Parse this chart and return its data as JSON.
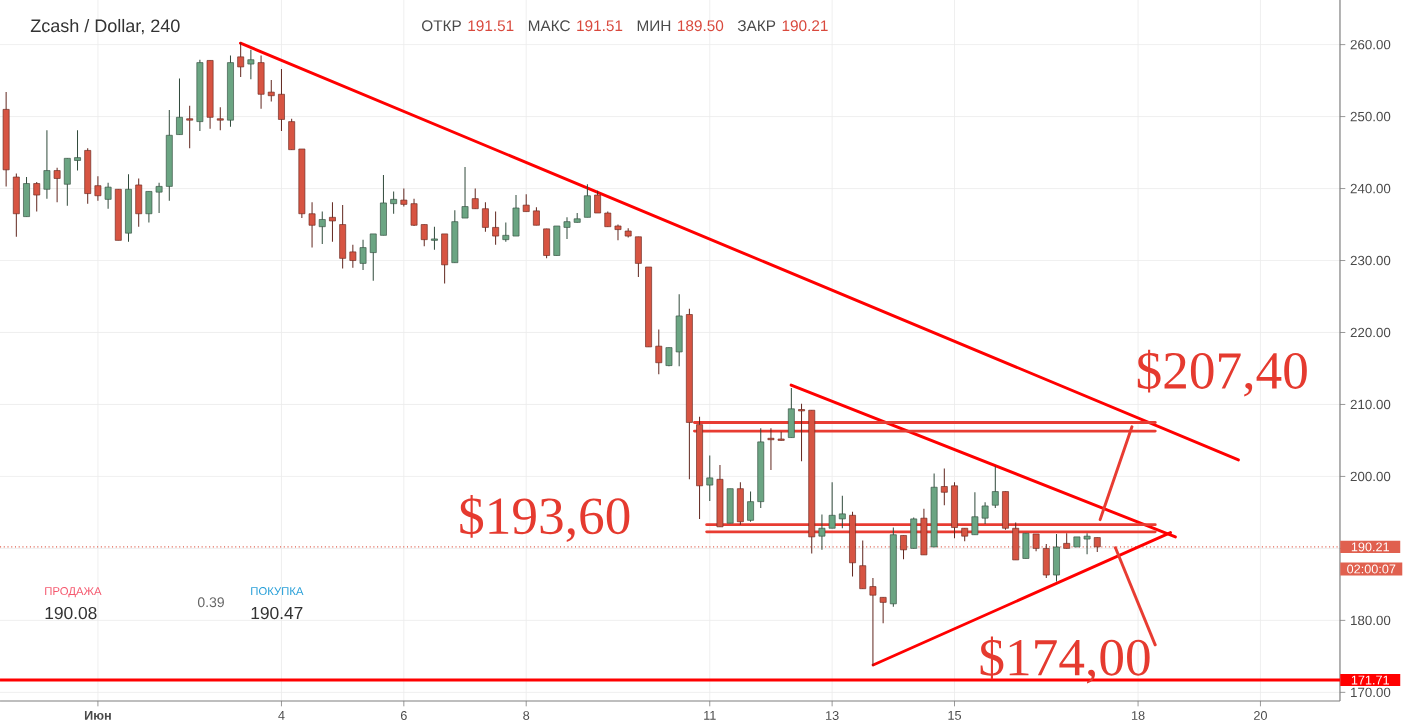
{
  "chart_data": {
    "type": "candlestick",
    "title": "Zcash / Dollar, 240",
    "x": [
      -0.5,
      -0.3333,
      -0.1667,
      0,
      0.1667,
      0.3333,
      0.5,
      0.6667,
      0.8333,
      1,
      1.1667,
      1.3333,
      1.5,
      1.6667,
      1.8333,
      2,
      2.1667,
      2.3333,
      2.5,
      2.6667,
      2.8333,
      3,
      3.1667,
      3.3333,
      3.5,
      3.6667,
      3.8333,
      4,
      4.1667,
      4.3333,
      4.5,
      4.6667,
      4.8333,
      5,
      5.1667,
      5.3333,
      5.5,
      5.6667,
      5.8333,
      6,
      6.1667,
      6.3333,
      6.5,
      6.6667,
      6.8333,
      7,
      7.1667,
      7.3333,
      7.5,
      7.6667,
      7.8333,
      8,
      8.1667,
      8.3333,
      8.5,
      8.6667,
      8.8333,
      9,
      9.1667,
      9.3333,
      9.5,
      9.6667,
      9.8333,
      10,
      10.1667,
      10.3333,
      10.5,
      10.6667,
      10.8333,
      11,
      11.1667,
      11.3333,
      11.5,
      11.6667,
      11.8333,
      12,
      12.1667,
      12.3333,
      12.5,
      12.6667,
      12.8333,
      13,
      13.1667,
      13.3333,
      13.5,
      13.6667,
      13.8333,
      14,
      14.1667,
      14.3333,
      14.5,
      14.6667,
      14.8333,
      15,
      15.1667,
      15.3333,
      15.5,
      15.6667,
      15.8333,
      16,
      16.1667,
      16.3333,
      16.5,
      16.6667,
      16.8333,
      17,
      17.1667,
      17.3333
    ],
    "ohlc": [
      [
        251.0,
        253.4,
        240.3,
        242.6
      ],
      [
        241.6,
        242.1,
        233.3,
        236.5
      ],
      [
        236.1,
        241.6,
        236.1,
        240.7
      ],
      [
        240.7,
        240.9,
        236.8,
        239.1
      ],
      [
        239.9,
        248.1,
        238.6,
        242.5
      ],
      [
        242.5,
        242.9,
        238.1,
        241.4
      ],
      [
        240.6,
        244.2,
        237.6,
        244.2
      ],
      [
        243.9,
        248.1,
        242.5,
        244.3
      ],
      [
        245.3,
        245.6,
        237.9,
        239.3
      ],
      [
        240.4,
        241.7,
        238.3,
        239.0
      ],
      [
        238.5,
        240.8,
        237.2,
        240.2
      ],
      [
        239.9,
        239.9,
        232.8,
        232.8
      ],
      [
        233.8,
        242.0,
        232.6,
        239.9
      ],
      [
        240.5,
        241.4,
        234.7,
        236.5
      ],
      [
        236.5,
        239.6,
        235.3,
        239.6
      ],
      [
        239.5,
        240.8,
        236.6,
        240.3
      ],
      [
        240.3,
        250.9,
        238.3,
        247.4
      ],
      [
        247.5,
        255.3,
        247.5,
        249.9
      ],
      [
        249.7,
        251.5,
        245.6,
        249.5
      ],
      [
        249.3,
        257.9,
        248.0,
        257.5
      ],
      [
        257.8,
        257.8,
        248.3,
        249.9
      ],
      [
        249.7,
        251.3,
        248.1,
        249.5
      ],
      [
        249.5,
        258.5,
        248.6,
        257.5
      ],
      [
        258.3,
        260.3,
        255.5,
        256.9
      ],
      [
        257.3,
        259.3,
        255.2,
        257.9
      ],
      [
        257.5,
        258.5,
        251.1,
        253.1
      ],
      [
        253.4,
        255.1,
        252.1,
        252.9
      ],
      [
        253.1,
        256.6,
        248.0,
        249.6
      ],
      [
        249.3,
        249.7,
        245.4,
        245.4
      ],
      [
        245.5,
        245.5,
        235.9,
        236.5
      ],
      [
        236.5,
        238.1,
        231.8,
        234.9
      ],
      [
        234.7,
        236.8,
        232.3,
        235.7
      ],
      [
        236.0,
        238.1,
        232.6,
        235.5
      ],
      [
        235.0,
        237.7,
        228.9,
        230.3
      ],
      [
        231.2,
        232.2,
        229.0,
        230.0
      ],
      [
        229.6,
        232.9,
        228.7,
        231.8
      ],
      [
        231.1,
        233.7,
        227.2,
        233.7
      ],
      [
        233.5,
        241.9,
        233.5,
        238.0
      ],
      [
        237.9,
        239.6,
        236.5,
        238.5
      ],
      [
        238.4,
        240.0,
        237.5,
        237.8
      ],
      [
        237.9,
        238.6,
        234.8,
        234.9
      ],
      [
        235.0,
        235.0,
        232.0,
        232.9
      ],
      [
        232.8,
        234.7,
        231.5,
        233.0
      ],
      [
        233.7,
        233.7,
        226.8,
        229.4
      ],
      [
        229.7,
        237.0,
        229.7,
        235.4
      ],
      [
        235.9,
        243.0,
        235.9,
        237.5
      ],
      [
        238.6,
        240.0,
        237.2,
        237.2
      ],
      [
        237.2,
        238.1,
        234.0,
        234.6
      ],
      [
        234.6,
        236.8,
        232.2,
        233.4
      ],
      [
        232.9,
        235.3,
        232.6,
        233.5
      ],
      [
        233.4,
        239.1,
        233.4,
        237.3
      ],
      [
        237.7,
        239.2,
        236.8,
        236.8
      ],
      [
        236.9,
        237.4,
        234.9,
        234.9
      ],
      [
        234.4,
        234.4,
        230.3,
        230.7
      ],
      [
        230.7,
        234.8,
        230.7,
        234.8
      ],
      [
        234.6,
        236.0,
        233.0,
        235.4
      ],
      [
        235.3,
        236.6,
        235.3,
        235.8
      ],
      [
        236.0,
        240.6,
        236.0,
        239.0
      ],
      [
        239.1,
        239.7,
        236.6,
        236.6
      ],
      [
        236.6,
        236.8,
        234.7,
        234.7
      ],
      [
        234.8,
        235.0,
        232.8,
        234.3
      ],
      [
        234.1,
        234.5,
        233.2,
        233.4
      ],
      [
        233.3,
        233.3,
        227.7,
        229.6
      ],
      [
        229.1,
        229.1,
        218.0,
        218.0
      ],
      [
        218.1,
        220.4,
        214.2,
        215.8
      ],
      [
        215.4,
        217.9,
        215.3,
        217.9
      ],
      [
        217.3,
        225.3,
        215.3,
        222.3
      ],
      [
        222.5,
        223.3,
        199.6,
        207.5
      ],
      [
        207.2,
        208.3,
        194.1,
        198.7
      ],
      [
        198.8,
        202.9,
        196.6,
        199.8
      ],
      [
        199.6,
        201.6,
        193.0,
        193.0
      ],
      [
        193.5,
        198.3,
        193.5,
        198.3
      ],
      [
        198.3,
        199.2,
        193.3,
        193.7
      ],
      [
        193.9,
        197.9,
        193.7,
        196.5
      ],
      [
        196.5,
        206.7,
        195.6,
        204.8
      ],
      [
        205.3,
        206.7,
        200.9,
        205.1
      ],
      [
        205.2,
        206.2,
        205.0,
        205.0
      ],
      [
        205.4,
        212.3,
        205.4,
        209.4
      ],
      [
        209.3,
        210.1,
        202.1,
        209.1
      ],
      [
        209.2,
        209.2,
        189.3,
        191.6
      ],
      [
        191.7,
        194.7,
        189.8,
        192.8
      ],
      [
        192.8,
        199.2,
        192.8,
        194.6
      ],
      [
        194.1,
        197.3,
        192.8,
        194.8
      ],
      [
        194.6,
        195.1,
        186.1,
        188.0
      ],
      [
        187.6,
        191.1,
        184.4,
        184.4
      ],
      [
        184.7,
        185.9,
        173.7,
        183.5
      ],
      [
        183.2,
        183.2,
        179.6,
        182.5
      ],
      [
        182.3,
        192.9,
        181.9,
        191.9
      ],
      [
        191.8,
        191.8,
        188.5,
        189.8
      ],
      [
        190.0,
        194.3,
        190.0,
        194.1
      ],
      [
        194.2,
        195.5,
        189.1,
        189.1
      ],
      [
        190.2,
        200.4,
        190.2,
        198.5
      ],
      [
        198.6,
        201.1,
        196.0,
        197.8
      ],
      [
        198.7,
        199.2,
        191.4,
        192.9
      ],
      [
        192.8,
        192.8,
        191.0,
        191.7
      ],
      [
        191.9,
        197.8,
        191.9,
        194.4
      ],
      [
        194.2,
        196.4,
        193.4,
        195.9
      ],
      [
        196.0,
        201.4,
        195.6,
        197.9
      ],
      [
        197.9,
        197.9,
        192.6,
        192.8
      ],
      [
        192.8,
        193.6,
        188.4,
        188.4
      ],
      [
        188.6,
        192.1,
        188.6,
        192.1
      ],
      [
        192.0,
        192.0,
        189.6,
        190.0
      ],
      [
        190.0,
        190.6,
        185.9,
        186.3
      ],
      [
        186.3,
        192.0,
        185.4,
        190.2
      ],
      [
        190.7,
        192.1,
        190.0,
        190.0
      ],
      [
        190.2,
        191.6,
        190.2,
        191.6
      ],
      [
        191.3,
        192.1,
        189.2,
        191.7
      ],
      [
        191.51,
        191.51,
        189.5,
        190.21
      ]
    ],
    "colors": [
      "#d75442",
      "#d75442",
      "#6ba583",
      "#d75442",
      "#6ba583",
      "#d75442",
      "#6ba583",
      "#6ba583",
      "#d75442",
      "#d75442",
      "#6ba583",
      "#d75442",
      "#6ba583",
      "#d75442",
      "#6ba583",
      "#6ba583",
      "#6ba583",
      "#6ba583",
      "#d75442",
      "#6ba583",
      "#d75442",
      "#d75442",
      "#6ba583",
      "#d75442",
      "#6ba583",
      "#d75442",
      "#d75442",
      "#d75442",
      "#d75442",
      "#d75442",
      "#d75442",
      "#6ba583",
      "#d75442",
      "#d75442",
      "#d75442",
      "#6ba583",
      "#6ba583",
      "#6ba583",
      "#6ba583",
      "#d75442",
      "#d75442",
      "#d75442",
      "#6ba583",
      "#d75442",
      "#6ba583",
      "#6ba583",
      "#d75442",
      "#d75442",
      "#d75442",
      "#6ba583",
      "#6ba583",
      "#d75442",
      "#d75442",
      "#d75442",
      "#6ba583",
      "#6ba583",
      "#6ba583",
      "#6ba583",
      "#d75442",
      "#d75442",
      "#d75442",
      "#d75442",
      "#d75442",
      "#d75442",
      "#d75442",
      "#6ba583",
      "#6ba583",
      "#d75442",
      "#d75442",
      "#6ba583",
      "#d75442",
      "#6ba583",
      "#d75442",
      "#6ba583",
      "#6ba583",
      "#d75442",
      "#d75442",
      "#6ba583",
      "#d75442",
      "#d75442",
      "#6ba583",
      "#6ba583",
      "#6ba583",
      "#d75442",
      "#d75442",
      "#d75442",
      "#d75442",
      "#6ba583",
      "#d75442",
      "#6ba583",
      "#d75442",
      "#6ba583",
      "#d75442",
      "#d75442",
      "#d75442",
      "#6ba583",
      "#6ba583",
      "#6ba583",
      "#d75442",
      "#d75442",
      "#6ba583",
      "#d75442",
      "#d75442",
      "#6ba583",
      "#d75442",
      "#6ba583",
      "#6ba583",
      "#d75442"
    ],
    "series": [
      {
        "type": "line",
        "color": "#ff0000",
        "x": [
          3.33,
          19.64
        ],
        "values": [
          260.2,
          202.3
        ]
      },
      {
        "type": "line",
        "color": "#ff0000",
        "x": [
          12.33,
          18.61
        ],
        "values": [
          212.7,
          191.6
        ]
      },
      {
        "type": "line",
        "color": "#ff0000",
        "x": [
          13.67,
          18.53
        ],
        "values": [
          173.8,
          192.2
        ]
      },
      {
        "type": "line",
        "color": "#e83c32",
        "x": [
          10.75,
          18.28
        ],
        "values": [
          207.5,
          207.5
        ]
      },
      {
        "type": "line",
        "color": "#e83c32",
        "x": [
          10.75,
          18.28
        ],
        "values": [
          206.3,
          206.3
        ]
      },
      {
        "type": "line",
        "color": "#e83c32",
        "x": [
          10.95,
          18.28
        ],
        "values": [
          193.3,
          193.3
        ]
      },
      {
        "type": "line",
        "color": "#e83c32",
        "x": [
          10.95,
          18.28
        ],
        "values": [
          192.3,
          192.3
        ]
      },
      {
        "type": "line",
        "color": "#e83c32",
        "x": [
          17.38,
          17.9
        ],
        "values": [
          194.0,
          206.9
        ]
      },
      {
        "type": "line",
        "color": "#e83c32",
        "x": [
          17.63,
          18.28
        ],
        "values": [
          190.1,
          176.6
        ]
      }
    ],
    "xlim": [
      -0.6,
      21.3
    ],
    "ylim": [
      168.8,
      266.2
    ],
    "xticks": [
      {
        "value": 1,
        "label": "Июн"
      },
      4,
      6,
      8,
      11,
      13,
      15,
      18,
      20
    ],
    "yticks": [
      {
        "value": 170,
        "label": "170.00"
      },
      {
        "value": 180,
        "label": "180.00"
      },
      {
        "value": 190,
        "label": null
      },
      {
        "value": 200,
        "label": "200.00"
      },
      {
        "value": 210,
        "label": "210.00"
      },
      {
        "value": 220,
        "label": "220.00"
      },
      {
        "value": 230,
        "label": "230.00"
      },
      {
        "value": 240,
        "label": "240.00"
      },
      {
        "value": 250,
        "label": "250.00"
      },
      {
        "value": 260,
        "label": "260.00"
      }
    ],
    "grid": true,
    "ref_lines": [
      {
        "axis": "y",
        "value": 190.21,
        "label": "190.21",
        "color": "#e0604f",
        "line_style": "dotted"
      },
      {
        "axis": "y",
        "value": 171.71,
        "label": "171.71",
        "color": "#ff0000"
      }
    ],
    "annotations": [
      "ОТКР",
      "191.51",
      "МАКС",
      "191.51",
      "МИН",
      "189.50",
      "ЗАКР",
      "190.21",
      "ПРОДАЖА",
      "190.08",
      "0.39",
      "ПОКУПКА",
      "190.47",
      "02:00:07",
      {
        "text": "$207,40",
        "x": 18.28,
        "y": 207.4
      },
      {
        "text": "$193,60",
        "x": 10.95,
        "y": 193.6
      },
      "$174,00"
    ]
  }
}
